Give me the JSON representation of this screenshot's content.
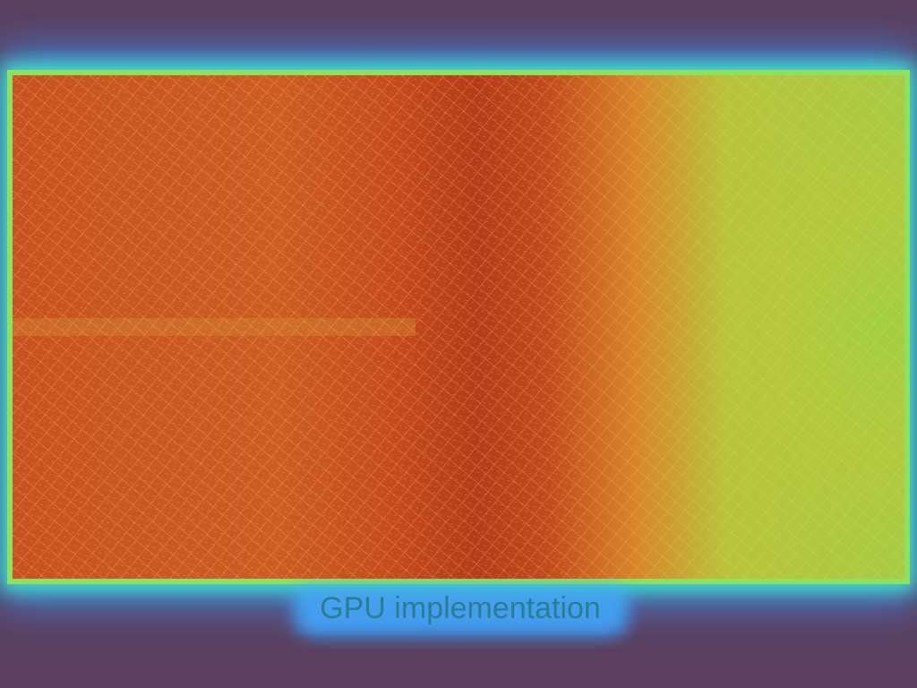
{
  "caption": "GPU implementation"
}
